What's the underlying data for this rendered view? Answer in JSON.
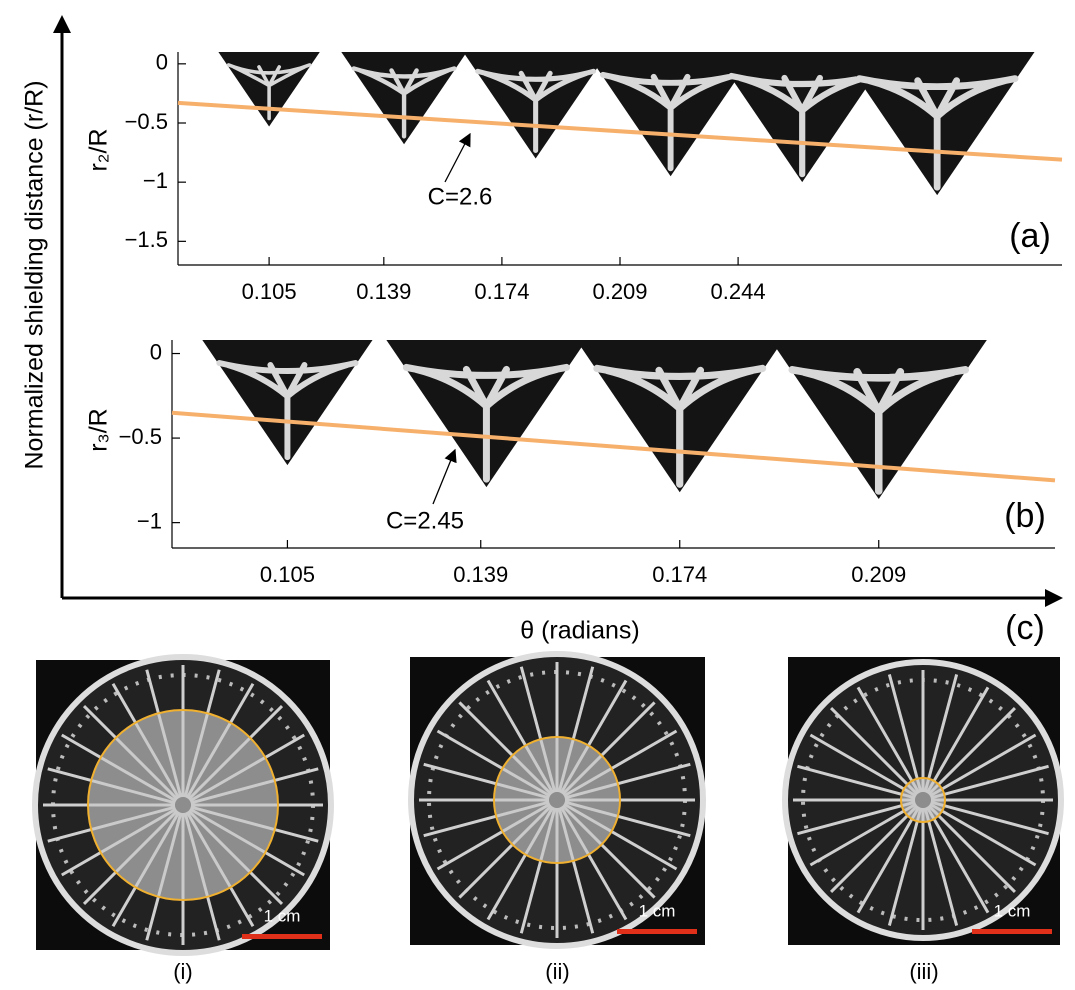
{
  "chart_data": [
    {
      "type": "line",
      "ylabel": "r₂/R",
      "panel_label": "(a)",
      "xlim": [
        0.078,
        0.34
      ],
      "ylim": [
        -1.7,
        0.1
      ],
      "xticks": [
        0.105,
        0.139,
        0.174,
        0.209,
        0.244
      ],
      "yticks": [
        {
          "value": -1.5,
          "label": "−1.5"
        },
        {
          "value": -1,
          "label": "−1"
        },
        {
          "value": -0.5,
          "label": "−0.5"
        },
        0
      ],
      "series": [
        {
          "color": "#f7b06b",
          "x": [
            0.078,
            0.34
          ],
          "values": [
            -0.33,
            -0.81
          ]
        }
      ],
      "triangles": {
        "x": [
          0.105,
          0.145,
          0.184,
          0.224,
          0.263,
          0.303
        ],
        "values": [
          -0.53,
          -0.68,
          -0.8,
          -0.95,
          -1.0,
          -1.11
        ]
      },
      "annotation": "C=2.6"
    },
    {
      "type": "line",
      "ylabel": "r₃/R",
      "panel_label": "(b)",
      "xlim": [
        0.0847,
        0.24
      ],
      "ylim": [
        -1.15,
        0.08
      ],
      "xticks": [
        0.105,
        0.139,
        0.174,
        0.209
      ],
      "yticks": [
        {
          "value": -1,
          "label": "−1"
        },
        {
          "value": -0.5,
          "label": "−0.5"
        },
        0
      ],
      "series": [
        {
          "color": "#f7b06b",
          "x": [
            0.0847,
            0.24
          ],
          "values": [
            -0.35,
            -0.75
          ]
        }
      ],
      "triangles": {
        "x": [
          0.105,
          0.14,
          0.174,
          0.209
        ],
        "values": [
          -0.66,
          -0.79,
          -0.82,
          -0.86
        ]
      },
      "annotation": "C=2.45"
    }
  ],
  "figure": {
    "ylabel": "Normalized shielding distance (r/R)",
    "xlabel": "θ (radians)",
    "panel_label": "(c)",
    "photos": [
      {
        "label": "(i)",
        "scale": "1 cm"
      },
      {
        "label": "(ii)",
        "scale": "1 cm"
      },
      {
        "label": "(iii)",
        "scale": "1 cm"
      }
    ]
  }
}
